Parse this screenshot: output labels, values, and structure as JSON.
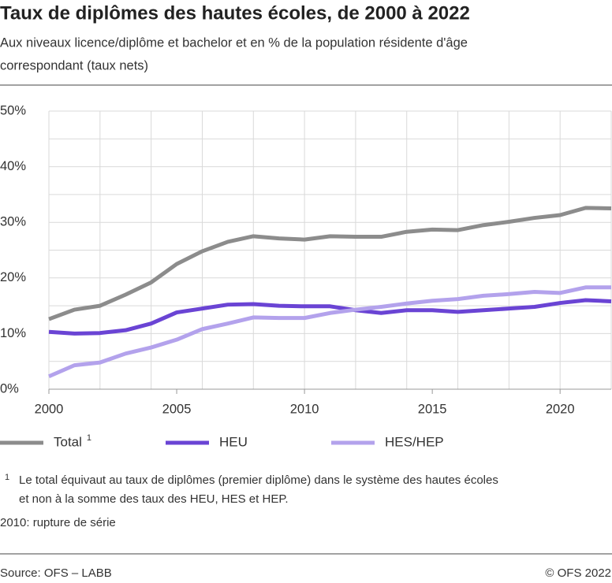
{
  "chart_data": {
    "type": "line",
    "title": "Taux de diplômes des hautes écoles, de 2000 à 2022",
    "subtitle": [
      "Aux niveaux licence/diplôme et bachelor et en % de la population résidente d'âge",
      "correspondant (taux nets)"
    ],
    "x": [
      2000,
      2001,
      2002,
      2003,
      2004,
      2005,
      2006,
      2007,
      2008,
      2009,
      2010,
      2011,
      2012,
      2013,
      2014,
      2015,
      2016,
      2017,
      2018,
      2019,
      2020,
      2021,
      2022
    ],
    "series": [
      {
        "name": "Total",
        "color": "#8c8c8c",
        "values": [
          12.6,
          14.3,
          15.0,
          17.0,
          19.2,
          22.5,
          24.8,
          26.5,
          27.5,
          27.1,
          26.9,
          27.5,
          27.4,
          27.4,
          28.3,
          28.7,
          28.6,
          29.5,
          30.1,
          30.8,
          31.3,
          32.6,
          32.5
        ]
      },
      {
        "name": "HEU",
        "color": "#6a44d4",
        "values": [
          10.3,
          10.0,
          10.1,
          10.6,
          11.8,
          13.8,
          14.5,
          15.2,
          15.3,
          15.0,
          14.9,
          14.9,
          14.2,
          13.7,
          14.2,
          14.2,
          13.9,
          14.2,
          14.5,
          14.8,
          15.5,
          16.0,
          15.8
        ]
      },
      {
        "name": "HES/HEP",
        "color": "#b3a2ec",
        "values": [
          2.3,
          4.3,
          4.8,
          6.4,
          7.5,
          8.9,
          10.8,
          11.8,
          12.9,
          12.8,
          12.8,
          13.7,
          14.3,
          14.8,
          15.4,
          15.9,
          16.2,
          16.8,
          17.1,
          17.5,
          17.3,
          18.3,
          18.3
        ]
      }
    ],
    "xlim": [
      2000,
      2022
    ],
    "xticks": [
      2000,
      2005,
      2010,
      2015,
      2020
    ],
    "xgrid": [
      2000,
      2002,
      2004,
      2006,
      2008,
      2010,
      2012,
      2014,
      2016,
      2018,
      2020,
      2022
    ],
    "ylim": [
      0,
      50
    ],
    "yticks": [
      {
        "value": 0,
        "label": "0%"
      },
      {
        "value": 10,
        "label": "10%"
      },
      {
        "value": 20,
        "label": "20%"
      },
      {
        "value": 30,
        "label": "30%"
      },
      {
        "value": 40,
        "label": "40%"
      },
      {
        "value": 50,
        "label": "50%"
      }
    ],
    "minor_yticks": [
      5,
      15,
      25,
      35,
      45
    ],
    "footnote": {
      "marker": "1",
      "lines": [
        "Le total équivaut au taux de diplômes (premier diplôme) dans le système des hautes écoles",
        "et non à la somme des taux des HEU, HES et HEP."
      ]
    },
    "note": "2010: rupture de série",
    "source": "Source: OFS – LABB",
    "copyright": "© OFS 2022"
  }
}
